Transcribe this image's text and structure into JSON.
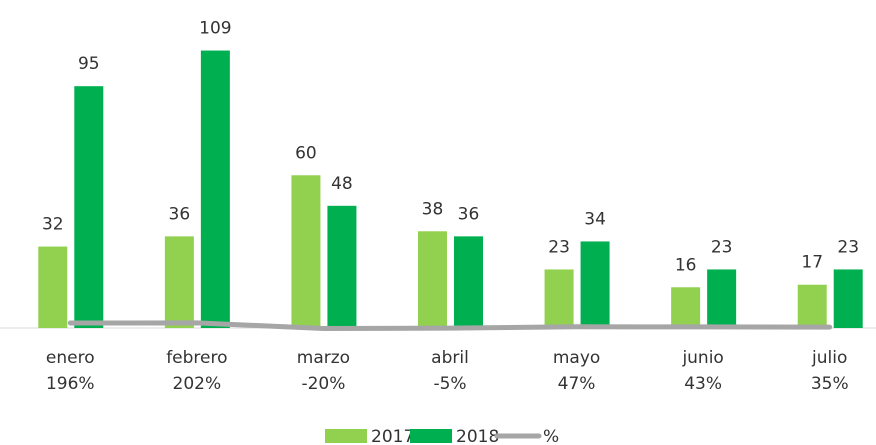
{
  "chart_data": {
    "type": "bar",
    "categories": [
      "enero",
      "febrero",
      "marzo",
      "abril",
      "mayo",
      "junio",
      "julio"
    ],
    "series": [
      {
        "name": "2017",
        "color": "#92d050",
        "values": [
          32,
          36,
          60,
          38,
          23,
          16,
          17
        ]
      },
      {
        "name": "2018",
        "color": "#00b050",
        "values": [
          95,
          109,
          48,
          36,
          34,
          23,
          23
        ]
      },
      {
        "name": "%",
        "color": "#a6a6a6",
        "axis": "y2",
        "type": "line",
        "values": [
          196,
          202,
          -20,
          -5,
          47,
          43,
          35
        ],
        "value_labels": [
          "196%",
          "202%",
          "-20%",
          "-5%",
          "47%",
          "43%",
          "35%"
        ]
      }
    ],
    "ylim": [
      0,
      110
    ],
    "y2lim": [
      0,
      11000
    ]
  }
}
